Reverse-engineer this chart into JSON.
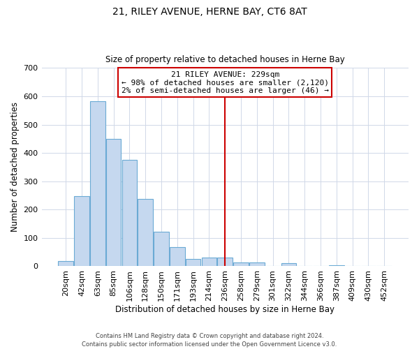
{
  "title": "21, RILEY AVENUE, HERNE BAY, CT6 8AT",
  "subtitle": "Size of property relative to detached houses in Herne Bay",
  "xlabel": "Distribution of detached houses by size in Herne Bay",
  "ylabel": "Number of detached properties",
  "bar_labels": [
    "20sqm",
    "42sqm",
    "63sqm",
    "85sqm",
    "106sqm",
    "128sqm",
    "150sqm",
    "171sqm",
    "193sqm",
    "214sqm",
    "236sqm",
    "258sqm",
    "279sqm",
    "301sqm",
    "322sqm",
    "344sqm",
    "366sqm",
    "387sqm",
    "409sqm",
    "430sqm",
    "452sqm"
  ],
  "bar_values": [
    18,
    248,
    582,
    450,
    375,
    237,
    122,
    67,
    25,
    31,
    31,
    13,
    13,
    0,
    10,
    0,
    0,
    4,
    0,
    0,
    2
  ],
  "bar_color": "#c5d8ef",
  "bar_edge_color": "#6aaad4",
  "vline_x": 10.0,
  "vline_color": "#cc0000",
  "annotation_title": "21 RILEY AVENUE: 229sqm",
  "annotation_line1": "← 98% of detached houses are smaller (2,120)",
  "annotation_line2": "2% of semi-detached houses are larger (46) →",
  "annotation_box_color": "#ffffff",
  "annotation_box_edge": "#cc0000",
  "ylim": [
    0,
    700
  ],
  "yticks": [
    0,
    100,
    200,
    300,
    400,
    500,
    600,
    700
  ],
  "footer1": "Contains HM Land Registry data © Crown copyright and database right 2024.",
  "footer2": "Contains public sector information licensed under the Open Government Licence v3.0.",
  "background_color": "#ffffff",
  "grid_color": "#d0d8e8"
}
